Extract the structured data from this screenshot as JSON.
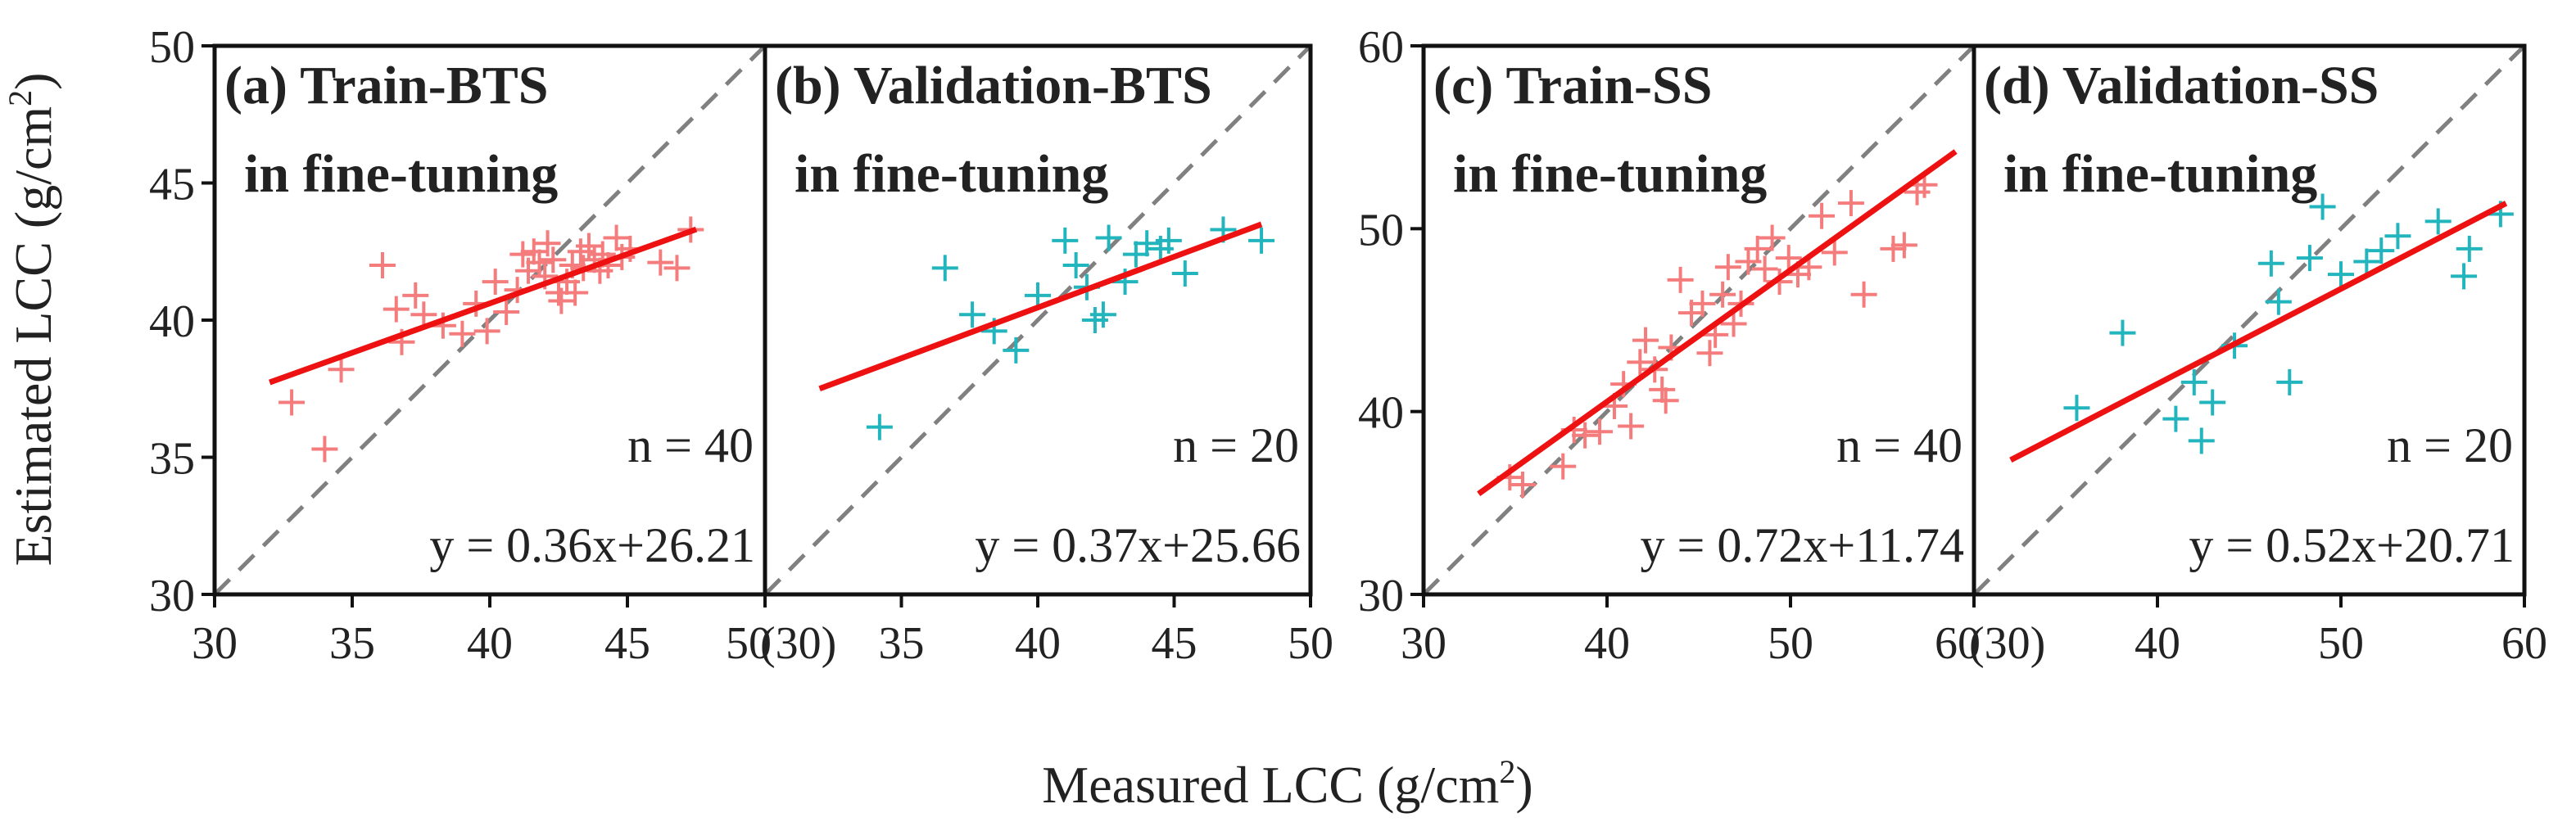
{
  "figure": {
    "xlabel": "Measured LCC (g/cm",
    "xlabel_sup": "2",
    "xlabel_end": ")",
    "ylabel": "Estimated LCC (g/cm",
    "ylabel_sup": "2",
    "ylabel_end": ")"
  },
  "chart_data": [
    {
      "type": "scatter",
      "title": "(a) Train-BTS",
      "subtitle": "in fine-tuning",
      "marker": "+",
      "color": "#f47c7c",
      "fit_color": "#ee1111",
      "xlim": [
        30,
        50
      ],
      "ylim": [
        30,
        50
      ],
      "xticks": [
        "30",
        "35",
        "40",
        "45",
        "50"
      ],
      "yticks": [
        "30",
        "35",
        "40",
        "45",
        "50"
      ],
      "n_label": "n = 40",
      "equation": "y = 0.36x+26.21",
      "fit": {
        "slope": 0.36,
        "intercept": 26.21,
        "x_range": [
          32,
          47.5
        ]
      },
      "points": [
        [
          32.8,
          37.0
        ],
        [
          34.0,
          35.3
        ],
        [
          34.6,
          38.2
        ],
        [
          36.1,
          42.0
        ],
        [
          36.6,
          40.4
        ],
        [
          36.8,
          39.2
        ],
        [
          37.3,
          40.9
        ],
        [
          37.6,
          40.2
        ],
        [
          38.3,
          39.8
        ],
        [
          39.0,
          39.5
        ],
        [
          39.5,
          40.6
        ],
        [
          39.9,
          39.6
        ],
        [
          40.2,
          41.4
        ],
        [
          40.6,
          40.3
        ],
        [
          41.0,
          41.1
        ],
        [
          41.2,
          42.4
        ],
        [
          41.4,
          41.8
        ],
        [
          41.6,
          42.5
        ],
        [
          41.8,
          42.1
        ],
        [
          42.0,
          41.6
        ],
        [
          42.1,
          42.8
        ],
        [
          42.3,
          42.2
        ],
        [
          42.5,
          41.0
        ],
        [
          42.6,
          40.7
        ],
        [
          42.8,
          41.4
        ],
        [
          43.0,
          42.0
        ],
        [
          43.1,
          41.0
        ],
        [
          43.3,
          42.5
        ],
        [
          43.4,
          41.9
        ],
        [
          43.6,
          42.7
        ],
        [
          43.8,
          42.2
        ],
        [
          44.0,
          41.8
        ],
        [
          44.1,
          42.4
        ],
        [
          44.3,
          42.0
        ],
        [
          44.6,
          43.0
        ],
        [
          44.8,
          42.3
        ],
        [
          45.1,
          42.6
        ],
        [
          46.2,
          42.1
        ],
        [
          46.8,
          41.9
        ],
        [
          47.3,
          43.3
        ]
      ]
    },
    {
      "type": "scatter",
      "title": "(b) Validation-BTS",
      "subtitle": "in fine-tuning",
      "marker": "+",
      "color": "#22b5bd",
      "fit_color": "#ee1111",
      "xlim": [
        30,
        50
      ],
      "ylim": [
        30,
        50
      ],
      "xticks": [
        "(30)",
        "35",
        "40",
        "45",
        "50"
      ],
      "yticks": [],
      "n_label": "n = 20",
      "equation": "y = 0.37x+25.66",
      "fit": {
        "slope": 0.37,
        "intercept": 25.66,
        "x_range": [
          32,
          48.2
        ]
      },
      "points": [
        [
          34.2,
          36.1
        ],
        [
          36.6,
          41.9
        ],
        [
          37.6,
          40.2
        ],
        [
          38.4,
          39.6
        ],
        [
          39.2,
          38.9
        ],
        [
          40.0,
          40.9
        ],
        [
          41.0,
          42.9
        ],
        [
          41.4,
          42.0
        ],
        [
          41.8,
          41.2
        ],
        [
          42.1,
          40.0
        ],
        [
          42.4,
          40.2
        ],
        [
          42.6,
          43.0
        ],
        [
          43.2,
          41.4
        ],
        [
          43.6,
          42.4
        ],
        [
          44.0,
          42.8
        ],
        [
          44.5,
          42.6
        ],
        [
          44.8,
          42.9
        ],
        [
          45.4,
          41.7
        ],
        [
          46.8,
          43.3
        ],
        [
          48.2,
          42.9
        ]
      ]
    },
    {
      "type": "scatter",
      "title": "(c) Train-SS",
      "subtitle": "in fine-tuning",
      "marker": "+",
      "color": "#f47c7c",
      "fit_color": "#ee1111",
      "xlim": [
        30,
        60
      ],
      "ylim": [
        30,
        60
      ],
      "xticks": [
        "30",
        "40",
        "50",
        "60"
      ],
      "yticks": [
        "30",
        "40",
        "50",
        "60"
      ],
      "n_label": "n = 40",
      "equation": "y = 0.72x+11.74",
      "fit": {
        "slope": 0.72,
        "intercept": 11.74,
        "x_range": [
          33,
          59
        ]
      },
      "points": [
        [
          34.7,
          36.4
        ],
        [
          35.4,
          36.0
        ],
        [
          37.6,
          37.0
        ],
        [
          38.2,
          39.0
        ],
        [
          38.8,
          38.7
        ],
        [
          39.6,
          38.9
        ],
        [
          40.4,
          40.3
        ],
        [
          40.9,
          41.5
        ],
        [
          41.3,
          39.2
        ],
        [
          41.8,
          42.7
        ],
        [
          42.1,
          43.9
        ],
        [
          42.6,
          42.3
        ],
        [
          43.0,
          41.2
        ],
        [
          43.2,
          40.6
        ],
        [
          43.5,
          43.5
        ],
        [
          44.0,
          47.2
        ],
        [
          44.6,
          45.4
        ],
        [
          45.2,
          45.9
        ],
        [
          45.6,
          43.2
        ],
        [
          45.9,
          44.2
        ],
        [
          46.3,
          46.4
        ],
        [
          46.6,
          47.9
        ],
        [
          46.9,
          44.8
        ],
        [
          47.3,
          45.9
        ],
        [
          47.7,
          48.2
        ],
        [
          48.2,
          48.9
        ],
        [
          48.6,
          47.8
        ],
        [
          49.0,
          49.5
        ],
        [
          49.4,
          47.1
        ],
        [
          49.9,
          48.4
        ],
        [
          50.4,
          47.5
        ],
        [
          51.0,
          47.9
        ],
        [
          51.7,
          50.7
        ],
        [
          52.4,
          48.7
        ],
        [
          53.3,
          51.4
        ],
        [
          54.0,
          46.4
        ],
        [
          55.6,
          48.9
        ],
        [
          56.2,
          49.1
        ],
        [
          56.9,
          52.0
        ],
        [
          57.3,
          52.4
        ]
      ]
    },
    {
      "type": "scatter",
      "title": "(d) Validation-SS",
      "subtitle": "in fine-tuning",
      "marker": "+",
      "color": "#22b5bd",
      "fit_color": "#ee1111",
      "xlim": [
        30,
        60
      ],
      "ylim": [
        30,
        60
      ],
      "xticks": [
        "(30)",
        "40",
        "50",
        "60"
      ],
      "yticks": [],
      "n_label": "n = 20",
      "equation": "y = 0.52x+20.71",
      "fit": {
        "slope": 0.52,
        "intercept": 20.71,
        "x_range": [
          32,
          59
        ]
      },
      "points": [
        [
          35.6,
          40.2
        ],
        [
          38.1,
          44.3
        ],
        [
          41.0,
          39.6
        ],
        [
          42.0,
          41.6
        ],
        [
          42.4,
          38.4
        ],
        [
          43.0,
          40.5
        ],
        [
          44.2,
          43.6
        ],
        [
          46.2,
          48.1
        ],
        [
          46.6,
          46.0
        ],
        [
          47.2,
          41.6
        ],
        [
          48.3,
          48.4
        ],
        [
          49.0,
          51.2
        ],
        [
          50.0,
          47.5
        ],
        [
          51.4,
          48.2
        ],
        [
          52.2,
          48.8
        ],
        [
          53.1,
          49.6
        ],
        [
          55.3,
          50.4
        ],
        [
          56.7,
          47.4
        ],
        [
          57.0,
          48.9
        ],
        [
          58.7,
          50.8
        ]
      ]
    }
  ]
}
